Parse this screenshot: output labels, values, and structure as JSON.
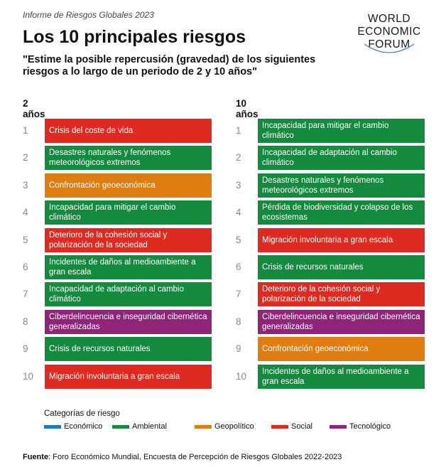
{
  "header": {
    "report": "Informe de Riesgos Globales 2023",
    "title": "Los 10 principales riesgos",
    "subtitle": "\"Estime la posible repercusión (gravedad) de los siguientes riesgos a lo largo de un periodo de 2 y 10 años\""
  },
  "logo": {
    "line1": "WORLD",
    "line2": "ECONOMIC",
    "line3": "FORUM"
  },
  "colors": {
    "Económico": "#1a7ac8",
    "Ambiental": "#138a3e",
    "Geopolítico": "#e07d10",
    "Social": "#de2a20",
    "Tecnológico": "#8f2479"
  },
  "columns": [
    {
      "label": "2 años",
      "items": [
        {
          "rank": "1",
          "text": "Crisis del coste de vida",
          "category": "Social"
        },
        {
          "rank": "2",
          "text": "Desastres naturales y fenómenos meteorológicos extremos",
          "category": "Ambiental"
        },
        {
          "rank": "3",
          "text": "Confrontación geoeconómica",
          "category": "Geopolítico"
        },
        {
          "rank": "4",
          "text": "Incapacidad para mitigar el cambio climático",
          "category": "Ambiental"
        },
        {
          "rank": "5",
          "text": "Deterioro de la cohesión social y polarización de la sociedad",
          "category": "Social"
        },
        {
          "rank": "6",
          "text": "Incidentes de daños al medioambiente a gran escala",
          "category": "Ambiental"
        },
        {
          "rank": "7",
          "text": "Incapacidad de adaptación al cambio climático",
          "category": "Ambiental"
        },
        {
          "rank": "8",
          "text": "Ciberdelincuencia e inseguridad cibernética generalizadas",
          "category": "Tecnológico"
        },
        {
          "rank": "9",
          "text": "Crisis de recursos naturales",
          "category": "Ambiental"
        },
        {
          "rank": "10",
          "text": "Migración involuntaria a gran escala",
          "category": "Social"
        }
      ]
    },
    {
      "label": "10 años",
      "items": [
        {
          "rank": "1",
          "text": "Incapacidad para mitigar el cambio climático",
          "category": "Ambiental"
        },
        {
          "rank": "2",
          "text": "Incapacidad de adaptación al cambio climático",
          "category": "Ambiental"
        },
        {
          "rank": "3",
          "text": "Desastres naturales y fenómenos meteorológicos extremos",
          "category": "Ambiental"
        },
        {
          "rank": "4",
          "text": "Pérdida de biodiversidad y colapso de los ecosistemas",
          "category": "Ambiental"
        },
        {
          "rank": "5",
          "text": "Migración involuntaria a gran escala",
          "category": "Social"
        },
        {
          "rank": "6",
          "text": "Crisis de recursos naturales",
          "category": "Ambiental"
        },
        {
          "rank": "7",
          "text": "Deterioro de la cohesión social y polarización de la sociedad",
          "category": "Social"
        },
        {
          "rank": "8",
          "text": "Ciberdelincuencia e inseguridad cibernética generalizadas",
          "category": "Tecnológico"
        },
        {
          "rank": "9",
          "text": "Confrontación geoeconómica",
          "category": "Geopolítico"
        },
        {
          "rank": "10",
          "text": "Incidentes de daños al medioambiente a gran escala",
          "category": "Ambiental"
        }
      ]
    }
  ],
  "legend": {
    "title": "Categorías de riesgo",
    "items": [
      "Económico",
      "Ambiental",
      "Geopolítico",
      "Social",
      "Tecnológico"
    ]
  },
  "source": {
    "label": "Fuente",
    "text": ": Foro Económico Mundial, Encuesta de Percepción de Riesgos Globales 2022-2023"
  }
}
